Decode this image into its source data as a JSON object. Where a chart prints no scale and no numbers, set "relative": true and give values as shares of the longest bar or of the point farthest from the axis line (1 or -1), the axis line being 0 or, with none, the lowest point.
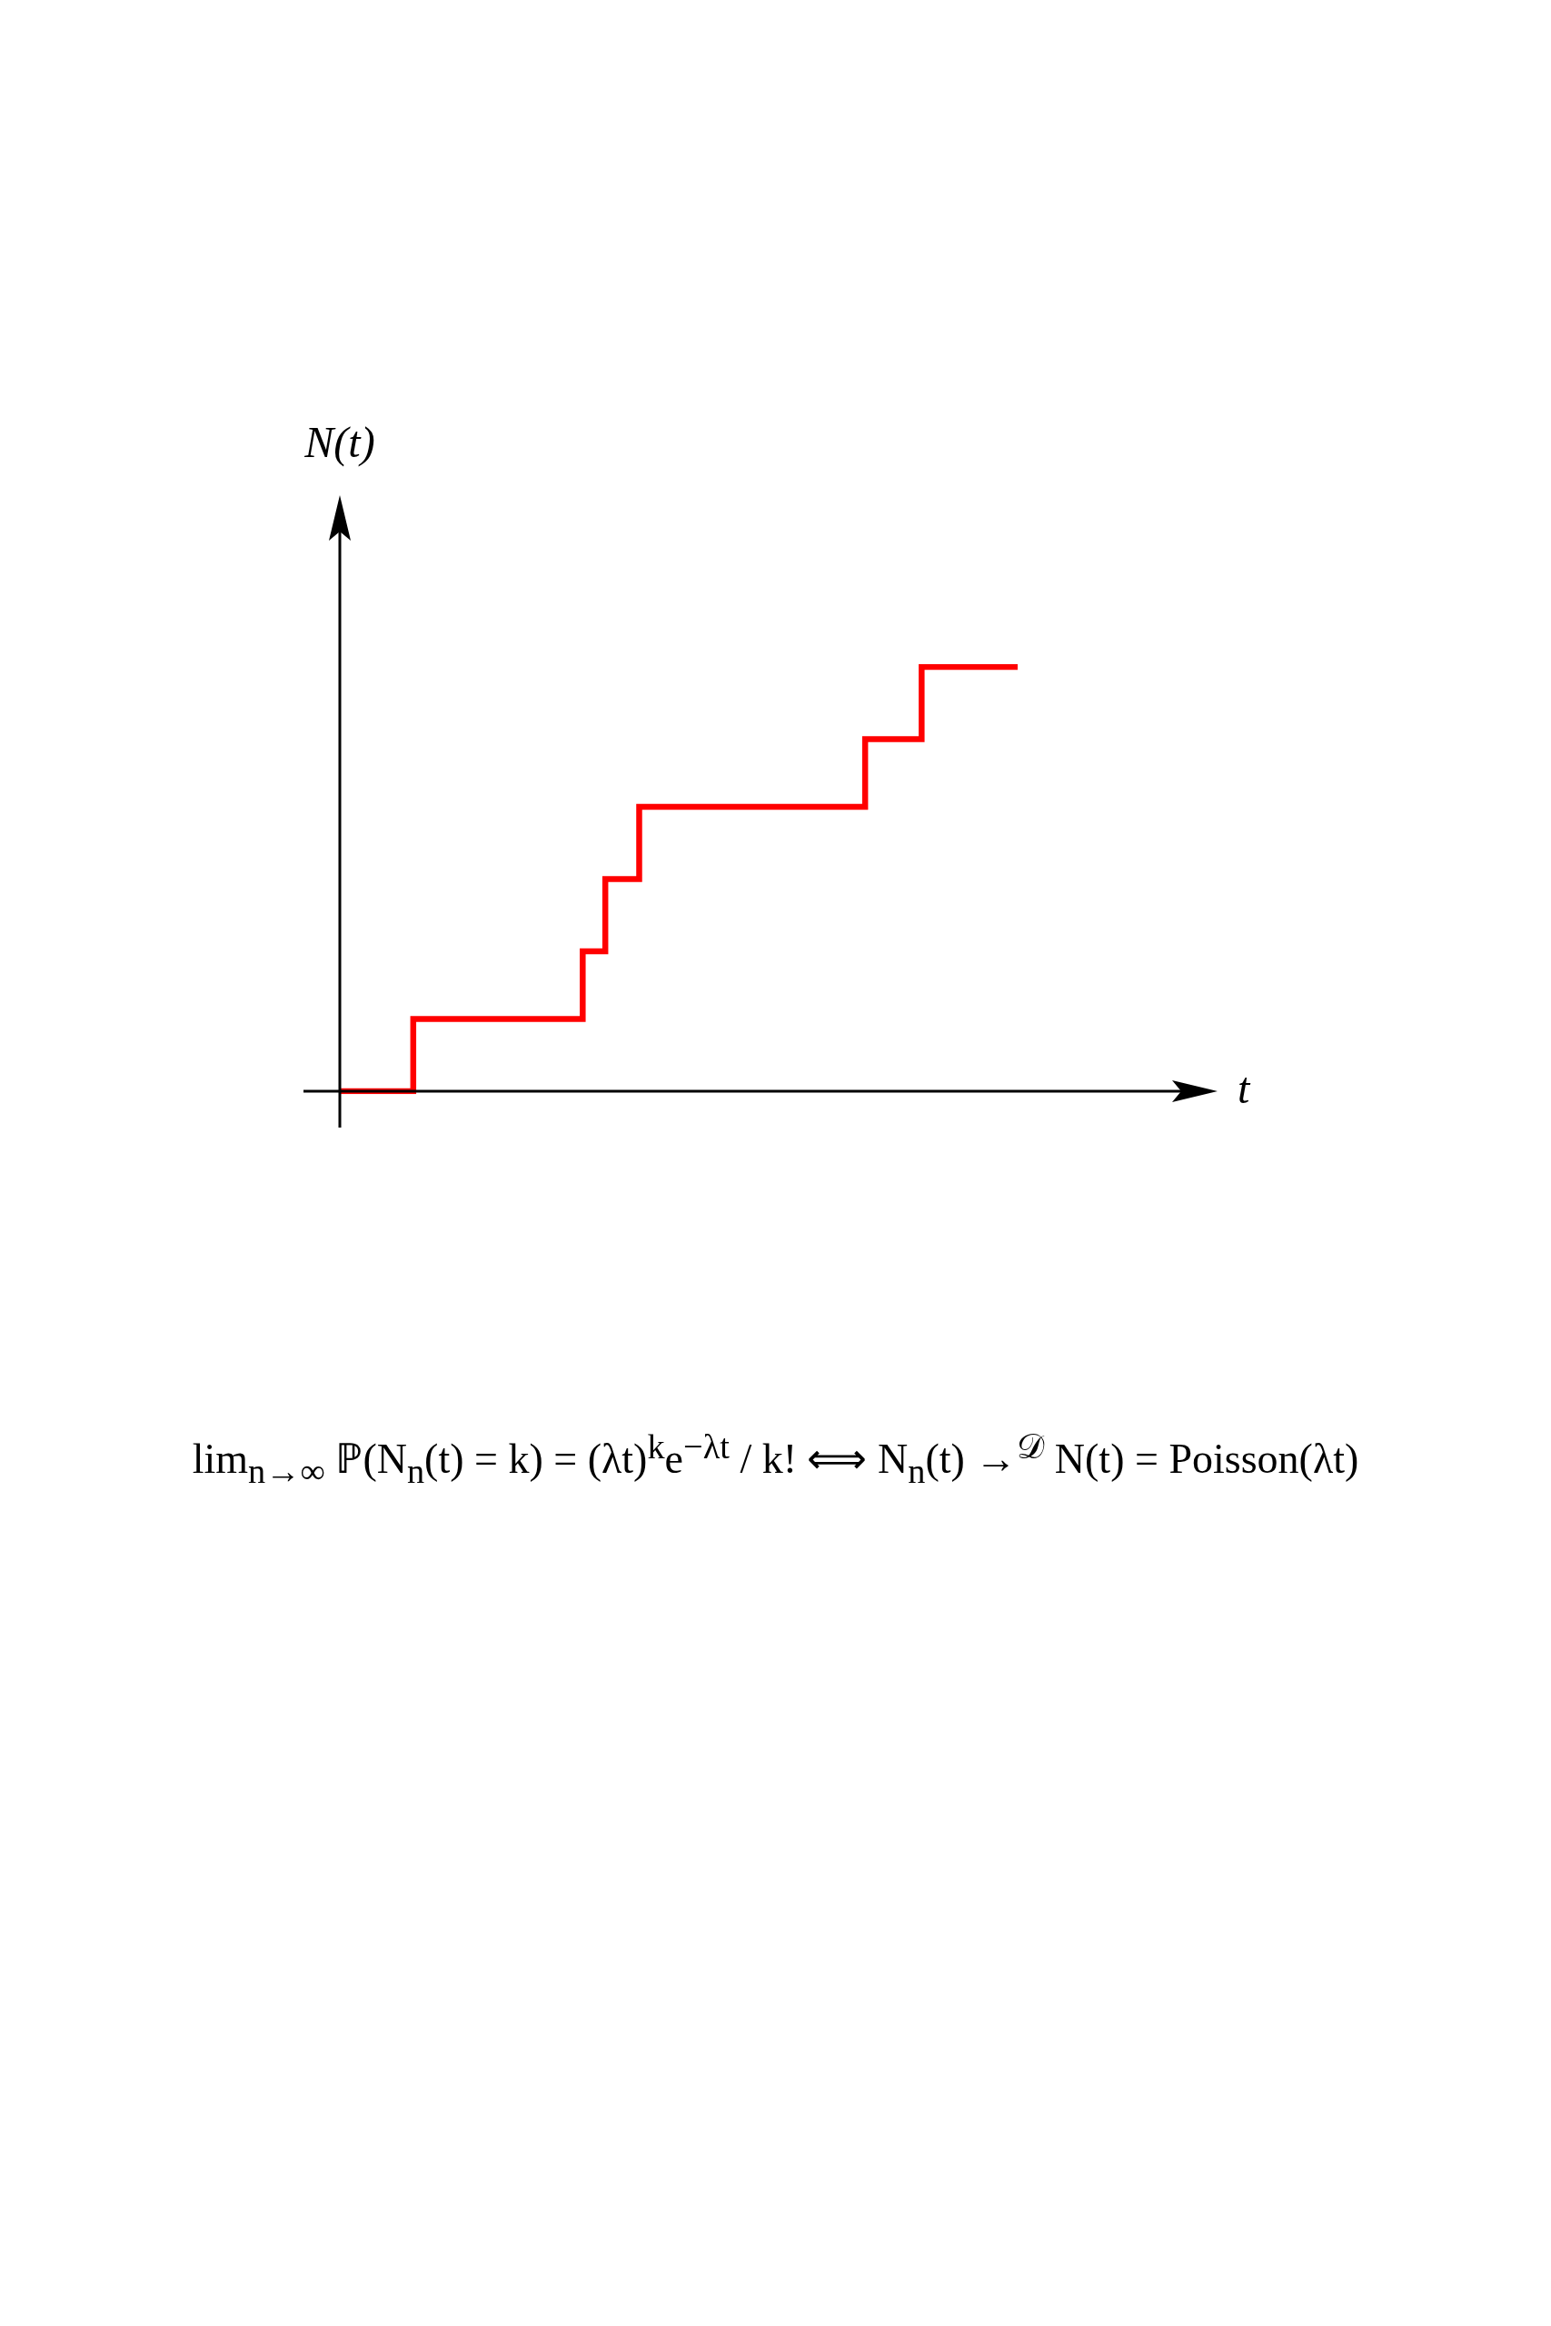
{
  "chart_data": {
    "type": "step",
    "xlabel": "t",
    "ylabel": "N(t)",
    "relative": true,
    "tick_labels": false,
    "legend": false,
    "marker": "none",
    "categories": [
      null,
      null,
      null,
      null,
      null,
      null,
      null,
      null,
      null,
      null,
      null,
      null,
      null,
      null,
      null,
      null,
      null,
      null,
      null,
      null,
      null,
      null,
      null,
      null,
      null,
      null,
      null,
      null,
      null,
      null,
      null,
      null,
      null,
      null,
      null,
      null,
      null,
      null,
      null,
      null,
      null,
      null,
      null,
      null,
      null,
      null,
      null,
      null,
      null,
      null,
      null,
      null,
      null,
      null,
      null,
      null,
      null,
      null,
      null,
      null,
      null
    ],
    "values": [
      0,
      0,
      0,
      0,
      0,
      0,
      0,
      0.17,
      0.17,
      0.17,
      0.17,
      0.17,
      0.17,
      0.17,
      0.17,
      0.17,
      0.17,
      0.17,
      0.17,
      0.17,
      0.17,
      0.17,
      0.33,
      0.33,
      0.5,
      0.5,
      0.5,
      0.67,
      0.67,
      0.67,
      0.67,
      0.67,
      0.67,
      0.67,
      0.67,
      0.67,
      0.67,
      0.67,
      0.67,
      0.67,
      0.67,
      0.67,
      0.67,
      0.67,
      0.67,
      0.67,
      0.67,
      0.83,
      0.83,
      0.83,
      0.83,
      0.83,
      1,
      1,
      1,
      1,
      1,
      1,
      1,
      1,
      1
    ],
    "color": "#ff0000",
    "annotations": [
      "lim$_{n→∞}$ ℙ(N$_{n}$(t) = k) = (λt)$^{k}$e$^{−λt}$ / k!   ⟺   N$_{n}$(t) →$^{𝒟}$ N(t) = Poisson(λt)"
    ]
  }
}
